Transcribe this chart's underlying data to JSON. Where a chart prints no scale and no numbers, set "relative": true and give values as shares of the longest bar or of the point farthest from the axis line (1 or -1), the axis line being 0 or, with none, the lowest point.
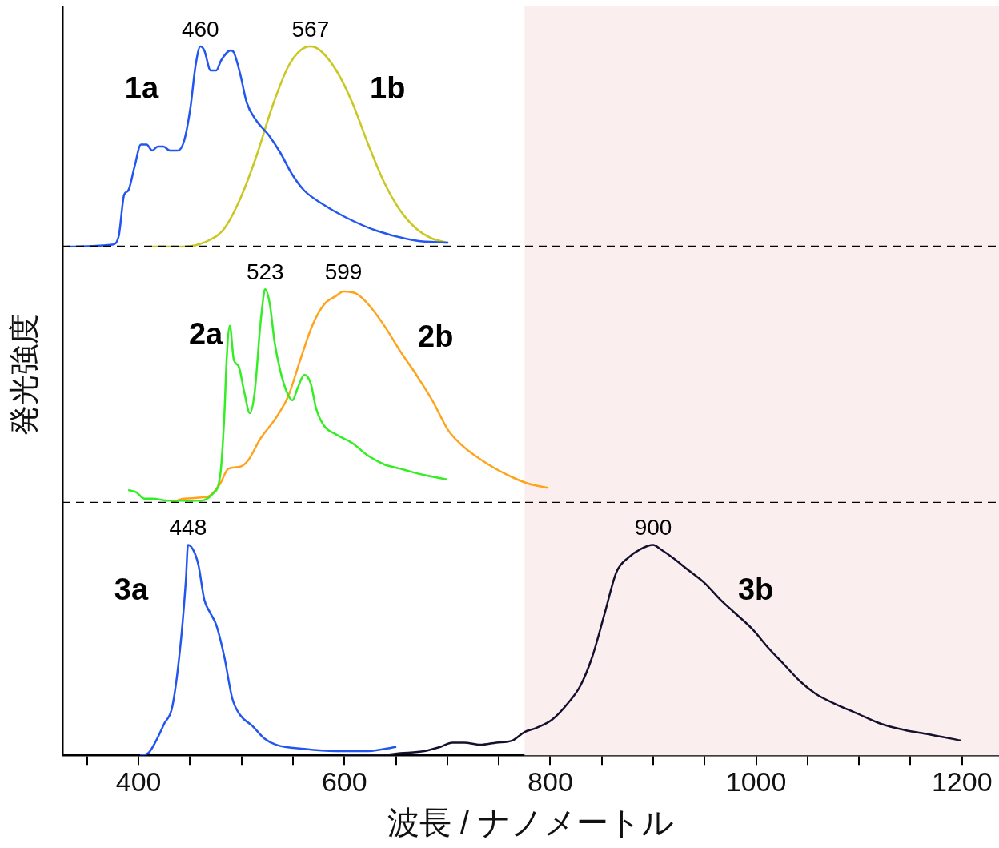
{
  "chart_data": [
    {
      "type": "line",
      "relative": true,
      "xlim": [
        326,
        1236
      ],
      "tick_labels": false,
      "bands": [
        {
          "axis": "x",
          "from": 775,
          "to": 1236,
          "color": "#fbeeee"
        }
      ],
      "annotations": [
        {
          "text": "460",
          "x": 460,
          "y": 1
        },
        {
          "text": "567",
          "x": 567,
          "y": 1
        }
      ],
      "series": [
        {
          "name": "1a",
          "color": "#2256f0",
          "x": [
            330.8,
            374.3,
            380.6,
            386.0,
            389.9,
            396.1,
            402.3,
            407.8,
            413.2,
            418.7,
            424.1,
            430.3,
            438.1,
            444.3,
            450.5,
            455.2,
            460,
            463.8,
            470.0,
            475.4,
            480.1,
            489.4,
            492.5,
            498.8,
            505.0,
            514.3,
            526.0,
            537.6,
            549.3,
            561.0,
            576.5,
            599.8,
            631.0,
            669.8,
            701
          ],
          "values": [
            0,
            0.01,
            0.05,
            0.26,
            0.28,
            0.4,
            0.51,
            0.51,
            0.48,
            0.5,
            0.5,
            0.48,
            0.48,
            0.53,
            0.7,
            0.9,
            1,
            0.98,
            0.88,
            0.88,
            0.93,
            0.98,
            0.97,
            0.86,
            0.72,
            0.63,
            0.56,
            0.47,
            0.36,
            0.28,
            0.22,
            0.15,
            0.08,
            0.03,
            0.02
          ]
        },
        {
          "name": "1b",
          "color": "#c8c81e",
          "x": [
            411.7,
            444.3,
            467.7,
            483.2,
            498.8,
            514.3,
            529.9,
            545.4,
            557.1,
            567,
            576.5,
            592.1,
            607.6,
            623.2,
            638.7,
            654.3,
            669.8,
            685.4,
            699.4
          ],
          "values": [
            0,
            0,
            0.03,
            0.09,
            0.24,
            0.45,
            0.7,
            0.9,
            0.98,
            1,
            0.98,
            0.88,
            0.72,
            0.51,
            0.32,
            0.18,
            0.09,
            0.04,
            0.02
          ]
        }
      ]
    },
    {
      "type": "line",
      "relative": true,
      "xlim": [
        326,
        1236
      ],
      "tick_labels": false,
      "ylabel": "発光強度",
      "bands": [
        {
          "axis": "x",
          "from": 775,
          "to": 1236,
          "color": "#fbeeee"
        }
      ],
      "annotations": [
        {
          "text": "523",
          "x": 523,
          "y": 1
        },
        {
          "text": "599",
          "x": 599,
          "y": 1
        }
      ],
      "series": [
        {
          "name": "2a",
          "color": "#33ee22",
          "x": [
            389.9,
            397.7,
            405.4,
            413.2,
            428.8,
            444.3,
            459.9,
            471.5,
            479.3,
            483.2,
            485.5,
            488.6,
            492.5,
            497.2,
            502.6,
            508.1,
            512.8,
            518.2,
            522.1,
            523,
            527.5,
            532.2,
            537.6,
            543.9,
            549.3,
            554.7,
            561.0,
            567.2,
            572.6,
            580.4,
            592.1,
            607.6,
            623.2,
            638.7,
            654.3,
            677.6,
            699.4
          ],
          "values": [
            0.06,
            0.05,
            0.02,
            0.02,
            0.01,
            0.01,
            0.01,
            0.04,
            0.13,
            0.4,
            0.67,
            0.83,
            0.67,
            0.64,
            0.52,
            0.42,
            0.52,
            0.83,
            0.99,
            1,
            0.93,
            0.75,
            0.62,
            0.52,
            0.48,
            0.54,
            0.6,
            0.56,
            0.44,
            0.36,
            0.32,
            0.28,
            0.22,
            0.18,
            0.16,
            0.13,
            0.11
          ]
        },
        {
          "name": "2b",
          "color": "#ffa31a",
          "x": [
            431.1,
            444.3,
            467.7,
            479.3,
            487.1,
            498.8,
            506.5,
            518.2,
            533.7,
            545.4,
            557.1,
            568.7,
            580.4,
            592.1,
            599,
            611.5,
            623.2,
            638.7,
            654.3,
            669.8,
            685.4,
            700.9,
            716.5,
            739.8,
            763.1,
            778.7,
            798.1
          ],
          "values": [
            0,
            0.02,
            0.03,
            0.09,
            0.16,
            0.17,
            0.2,
            0.3,
            0.4,
            0.5,
            0.67,
            0.83,
            0.93,
            0.97,
            0.99,
            0.98,
            0.93,
            0.83,
            0.71,
            0.6,
            0.48,
            0.34,
            0.26,
            0.18,
            0.12,
            0.09,
            0.07
          ]
        }
      ]
    },
    {
      "type": "line",
      "relative": true,
      "xlim": [
        326,
        1236
      ],
      "tick_labels": "x",
      "xlabel": "波長 / ナノメートル",
      "xticks": [
        {
          "value": 350,
          "label": null
        },
        400,
        {
          "value": 450,
          "label": null
        },
        {
          "value": 500,
          "label": null
        },
        {
          "value": 550,
          "label": null
        },
        600,
        {
          "value": 650,
          "label": null
        },
        {
          "value": 700,
          "label": null
        },
        {
          "value": 750,
          "label": null
        },
        800,
        {
          "value": 850,
          "label": null
        },
        {
          "value": 900,
          "label": null
        },
        {
          "value": 950,
          "label": null
        },
        1000,
        {
          "value": 1050,
          "label": null
        },
        {
          "value": 1100,
          "label": null
        },
        {
          "value": 1150,
          "label": null
        },
        1200
      ],
      "bands": [
        {
          "axis": "x",
          "from": 775,
          "to": 1236,
          "color": "#fbeeee"
        }
      ],
      "annotations": [
        {
          "text": "448",
          "x": 448,
          "y": 1
        },
        {
          "text": "900",
          "x": 900,
          "y": 1
        }
      ],
      "series": [
        {
          "name": "3a",
          "color": "#2256f0",
          "x": [
            401.6,
            409.3,
            417.1,
            424.9,
            432.7,
            440.4,
            445.9,
            448,
            453.7,
            458.3,
            463.8,
            469.2,
            475.4,
            483.2,
            491.0,
            498.8,
            510.4,
            522.1,
            533.7,
            561.0,
            592.1,
            623.2,
            650.4
          ],
          "values": [
            0,
            0.01,
            0.07,
            0.15,
            0.23,
            0.51,
            0.83,
            1,
            0.97,
            0.9,
            0.74,
            0.68,
            0.62,
            0.47,
            0.27,
            0.19,
            0.14,
            0.08,
            0.05,
            0.03,
            0.02,
            0.02,
            0.04
          ]
        },
        {
          "name": "3b",
          "color": "#14102e",
          "x": [
            599.8,
            631.0,
            654.3,
            677.6,
            693.2,
            704.8,
            716.5,
            732.0,
            747.6,
            763.1,
            774.8,
            786.5,
            802.0,
            817.6,
            829.2,
            840.9,
            852.6,
            864.2,
            875.9,
            887.6,
            900,
            907.0,
            918.7,
            934.2,
            949.8,
            965.3,
            980.9,
            996.4,
            1012.0,
            1027.5,
            1043.1,
            1058.6,
            1074.2,
            1097.5,
            1120.8,
            1144.2,
            1167.5,
            1198.6
          ],
          "values": [
            0,
            0,
            0.01,
            0.02,
            0.04,
            0.06,
            0.06,
            0.05,
            0.06,
            0.07,
            0.11,
            0.13,
            0.17,
            0.25,
            0.33,
            0.47,
            0.67,
            0.87,
            0.94,
            0.98,
            1,
            0.98,
            0.94,
            0.88,
            0.82,
            0.74,
            0.67,
            0.6,
            0.51,
            0.43,
            0.35,
            0.29,
            0.25,
            0.2,
            0.15,
            0.12,
            0.1,
            0.07
          ]
        }
      ]
    }
  ]
}
